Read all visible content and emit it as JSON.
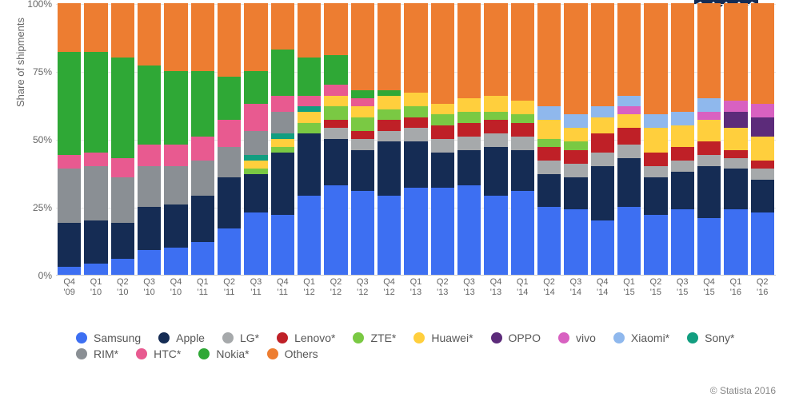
{
  "chart": {
    "type": "stacked-bar-100",
    "ylabel": "Share of shipments",
    "ylim": [
      0,
      100
    ],
    "ytick_step": 25,
    "yticks": [
      "0%",
      "25%",
      "50%",
      "75%",
      "100%"
    ],
    "grid_color": "#e6e6e6",
    "background_color": "#ffffff",
    "axis_color": "#cccccc",
    "text_color": "#666666",
    "label_fontsize": 13,
    "tick_fontsize": 12,
    "categories": [
      "Q4\n'09",
      "Q1\n'10",
      "Q2\n'10",
      "Q3\n'10",
      "Q4\n'10",
      "Q1\n'11",
      "Q2\n'11",
      "Q3\n'11",
      "Q4\n'11",
      "Q1\n'12",
      "Q2\n'12",
      "Q3\n'12",
      "Q4\n'12",
      "Q1\n'13",
      "Q2\n'13",
      "Q3\n'13",
      "Q4\n'13",
      "Q1\n'14",
      "Q2\n'14",
      "Q3\n'14",
      "Q4\n'14",
      "Q1\n'15",
      "Q2\n'15",
      "Q3\n'15",
      "Q4\n'15",
      "Q1\n'16",
      "Q2\n'16"
    ],
    "series": [
      {
        "name": "Samsung",
        "color": "#3d6ff2",
        "values": [
          3,
          4,
          6,
          9,
          10,
          12,
          17,
          23,
          22,
          29,
          33,
          31,
          29,
          32,
          32,
          33,
          29,
          31,
          25,
          24,
          20,
          25,
          22,
          24,
          21,
          24,
          23
        ]
      },
      {
        "name": "Apple",
        "color": "#152c54",
        "values": [
          16,
          16,
          13,
          16,
          16,
          17,
          19,
          14,
          23,
          23,
          17,
          15,
          20,
          17,
          13,
          13,
          18,
          15,
          12,
          12,
          20,
          18,
          14,
          14,
          19,
          15,
          12
        ]
      },
      {
        "name": "LG*",
        "color": "#a6a9ab",
        "values": [
          0,
          0,
          0,
          0,
          0,
          0,
          0,
          0,
          0,
          0,
          4,
          4,
          4,
          5,
          5,
          5,
          5,
          5,
          5,
          5,
          5,
          5,
          4,
          4,
          4,
          4,
          4
        ]
      },
      {
        "name": "Lenovo*",
        "color": "#bf2027",
        "values": [
          0,
          0,
          0,
          0,
          0,
          0,
          0,
          0,
          0,
          0,
          3,
          3,
          4,
          4,
          5,
          5,
          5,
          5,
          5,
          5,
          7,
          6,
          5,
          5,
          5,
          3,
          3
        ]
      },
      {
        "name": "ZTE*",
        "color": "#7ac943",
        "values": [
          0,
          0,
          0,
          0,
          0,
          0,
          0,
          2,
          2,
          4,
          5,
          5,
          4,
          4,
          4,
          4,
          3,
          3,
          3,
          3,
          0,
          0,
          0,
          0,
          0,
          0,
          0
        ]
      },
      {
        "name": "Huawei*",
        "color": "#ffcf3d",
        "values": [
          0,
          0,
          0,
          0,
          0,
          0,
          0,
          3,
          3,
          4,
          4,
          4,
          5,
          5,
          4,
          5,
          6,
          5,
          7,
          5,
          6,
          5,
          9,
          8,
          8,
          8,
          9
        ]
      },
      {
        "name": "OPPO",
        "color": "#5c2b7a",
        "values": [
          0,
          0,
          0,
          0,
          0,
          0,
          0,
          0,
          0,
          0,
          0,
          0,
          0,
          0,
          0,
          0,
          0,
          0,
          0,
          0,
          0,
          0,
          0,
          0,
          0,
          6,
          7
        ]
      },
      {
        "name": "vivo",
        "color": "#d861c1",
        "values": [
          0,
          0,
          0,
          0,
          0,
          0,
          0,
          0,
          0,
          0,
          0,
          0,
          0,
          0,
          0,
          0,
          0,
          0,
          0,
          0,
          0,
          3,
          0,
          0,
          3,
          4,
          5
        ]
      },
      {
        "name": "Xiaomi*",
        "color": "#8fb8ed",
        "values": [
          0,
          0,
          0,
          0,
          0,
          0,
          0,
          0,
          0,
          0,
          0,
          0,
          0,
          0,
          0,
          0,
          0,
          0,
          5,
          5,
          4,
          4,
          5,
          5,
          5,
          0,
          0
        ]
      },
      {
        "name": "Sony*",
        "color": "#129e80",
        "values": [
          0,
          0,
          0,
          0,
          0,
          0,
          0,
          2,
          2,
          2,
          0,
          0,
          0,
          0,
          0,
          0,
          0,
          0,
          0,
          0,
          0,
          0,
          0,
          0,
          0,
          0,
          0
        ]
      },
      {
        "name": "RIM*",
        "color": "#8a8f94",
        "values": [
          20,
          20,
          17,
          15,
          14,
          13,
          11,
          9,
          8,
          0,
          0,
          0,
          0,
          0,
          0,
          0,
          0,
          0,
          0,
          0,
          0,
          0,
          0,
          0,
          0,
          0,
          0
        ]
      },
      {
        "name": "HTC*",
        "color": "#e85a90",
        "values": [
          5,
          5,
          7,
          8,
          8,
          9,
          10,
          10,
          6,
          4,
          4,
          3,
          0,
          0,
          0,
          0,
          0,
          0,
          0,
          0,
          0,
          0,
          0,
          0,
          0,
          0,
          0
        ]
      },
      {
        "name": "Nokia*",
        "color": "#2fa836",
        "values": [
          38,
          37,
          37,
          29,
          27,
          24,
          16,
          12,
          17,
          14,
          11,
          3,
          2,
          0,
          0,
          0,
          0,
          0,
          0,
          0,
          0,
          0,
          0,
          0,
          0,
          0,
          0
        ]
      },
      {
        "name": "Others",
        "color": "#ed7d31",
        "values": [
          18,
          18,
          20,
          23,
          25,
          25,
          27,
          25,
          17,
          20,
          19,
          32,
          32,
          33,
          37,
          35,
          34,
          36,
          38,
          41,
          38,
          34,
          41,
          40,
          35,
          36,
          37
        ]
      }
    ],
    "legend_rows": [
      [
        "Samsung",
        "Apple",
        "LG*",
        "Lenovo*",
        "ZTE*",
        "Huawei*",
        "OPPO",
        "vivo",
        "Xiaomi*",
        "Sony*"
      ],
      [
        "RIM*",
        "HTC*",
        "Nokia*",
        "Others"
      ]
    ]
  },
  "credit": "© Statista 2016",
  "badge_color": "#152c54"
}
